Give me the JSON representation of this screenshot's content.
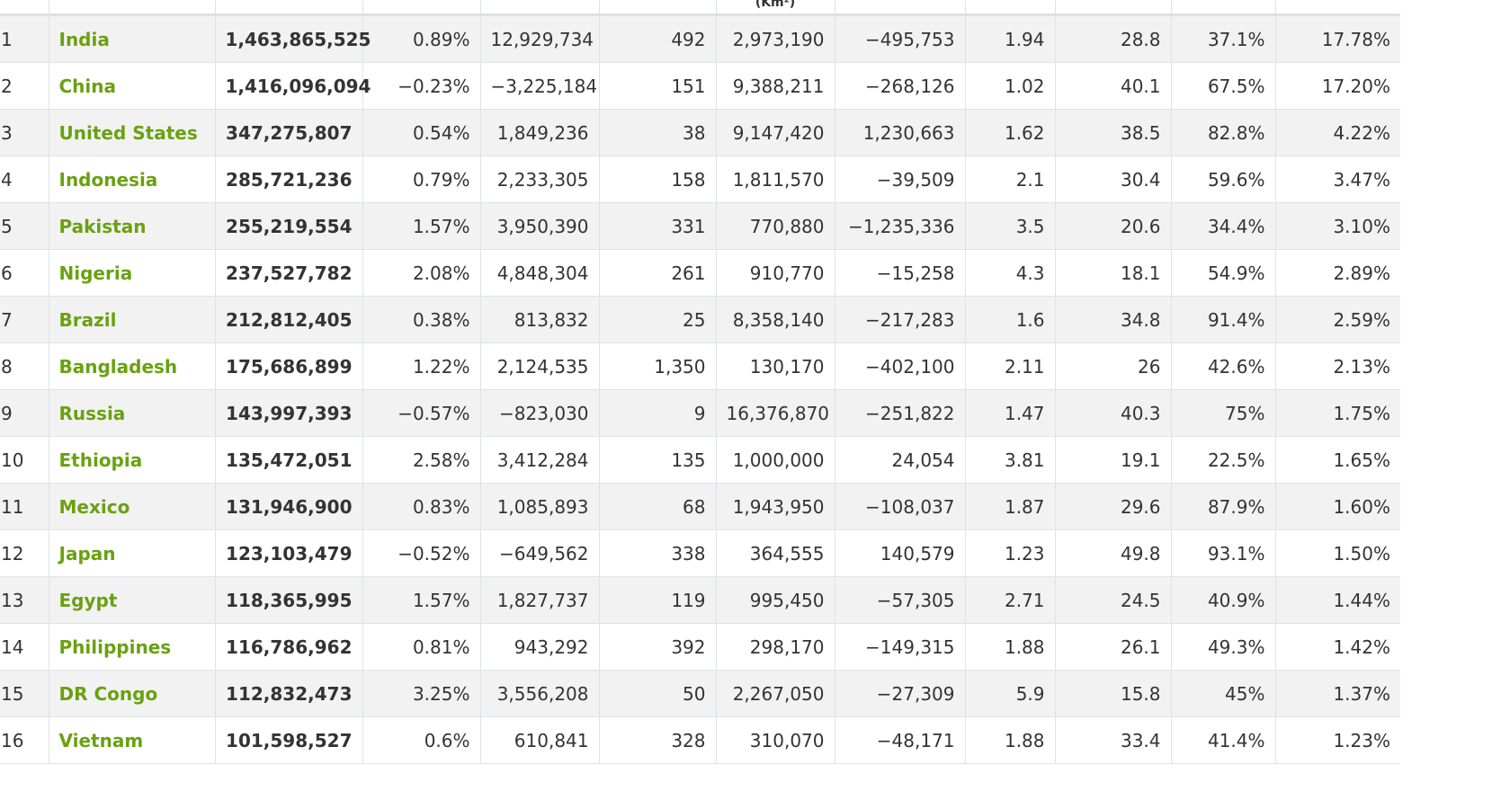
{
  "table": {
    "headers": [
      "",
      "",
      "",
      "",
      "",
      "",
      "(Km²)",
      "",
      "",
      "",
      "",
      ""
    ],
    "rows": [
      {
        "rank": "1",
        "country": "India",
        "population": "1,463,865,525",
        "yearly_change": "0.89%",
        "net_change": "12,929,734",
        "density": "492",
        "land_area": "2,973,190",
        "migrants": "−495,753",
        "fertility": "1.94",
        "median_age": "28.8",
        "urban_pop": "37.1%",
        "world_share": "17.78%"
      },
      {
        "rank": "2",
        "country": "China",
        "population": "1,416,096,094",
        "yearly_change": "−0.23%",
        "net_change": "−3,225,184",
        "density": "151",
        "land_area": "9,388,211",
        "migrants": "−268,126",
        "fertility": "1.02",
        "median_age": "40.1",
        "urban_pop": "67.5%",
        "world_share": "17.20%"
      },
      {
        "rank": "3",
        "country": "United States",
        "population": "347,275,807",
        "yearly_change": "0.54%",
        "net_change": "1,849,236",
        "density": "38",
        "land_area": "9,147,420",
        "migrants": "1,230,663",
        "fertility": "1.62",
        "median_age": "38.5",
        "urban_pop": "82.8%",
        "world_share": "4.22%"
      },
      {
        "rank": "4",
        "country": "Indonesia",
        "population": "285,721,236",
        "yearly_change": "0.79%",
        "net_change": "2,233,305",
        "density": "158",
        "land_area": "1,811,570",
        "migrants": "−39,509",
        "fertility": "2.1",
        "median_age": "30.4",
        "urban_pop": "59.6%",
        "world_share": "3.47%"
      },
      {
        "rank": "5",
        "country": "Pakistan",
        "population": "255,219,554",
        "yearly_change": "1.57%",
        "net_change": "3,950,390",
        "density": "331",
        "land_area": "770,880",
        "migrants": "−1,235,336",
        "fertility": "3.5",
        "median_age": "20.6",
        "urban_pop": "34.4%",
        "world_share": "3.10%"
      },
      {
        "rank": "6",
        "country": "Nigeria",
        "population": "237,527,782",
        "yearly_change": "2.08%",
        "net_change": "4,848,304",
        "density": "261",
        "land_area": "910,770",
        "migrants": "−15,258",
        "fertility": "4.3",
        "median_age": "18.1",
        "urban_pop": "54.9%",
        "world_share": "2.89%"
      },
      {
        "rank": "7",
        "country": "Brazil",
        "population": "212,812,405",
        "yearly_change": "0.38%",
        "net_change": "813,832",
        "density": "25",
        "land_area": "8,358,140",
        "migrants": "−217,283",
        "fertility": "1.6",
        "median_age": "34.8",
        "urban_pop": "91.4%",
        "world_share": "2.59%"
      },
      {
        "rank": "8",
        "country": "Bangladesh",
        "population": "175,686,899",
        "yearly_change": "1.22%",
        "net_change": "2,124,535",
        "density": "1,350",
        "land_area": "130,170",
        "migrants": "−402,100",
        "fertility": "2.11",
        "median_age": "26",
        "urban_pop": "42.6%",
        "world_share": "2.13%"
      },
      {
        "rank": "9",
        "country": "Russia",
        "population": "143,997,393",
        "yearly_change": "−0.57%",
        "net_change": "−823,030",
        "density": "9",
        "land_area": "16,376,870",
        "migrants": "−251,822",
        "fertility": "1.47",
        "median_age": "40.3",
        "urban_pop": "75%",
        "world_share": "1.75%"
      },
      {
        "rank": "10",
        "country": "Ethiopia",
        "population": "135,472,051",
        "yearly_change": "2.58%",
        "net_change": "3,412,284",
        "density": "135",
        "land_area": "1,000,000",
        "migrants": "24,054",
        "fertility": "3.81",
        "median_age": "19.1",
        "urban_pop": "22.5%",
        "world_share": "1.65%"
      },
      {
        "rank": "11",
        "country": "Mexico",
        "population": "131,946,900",
        "yearly_change": "0.83%",
        "net_change": "1,085,893",
        "density": "68",
        "land_area": "1,943,950",
        "migrants": "−108,037",
        "fertility": "1.87",
        "median_age": "29.6",
        "urban_pop": "87.9%",
        "world_share": "1.60%"
      },
      {
        "rank": "12",
        "country": "Japan",
        "population": "123,103,479",
        "yearly_change": "−0.52%",
        "net_change": "−649,562",
        "density": "338",
        "land_area": "364,555",
        "migrants": "140,579",
        "fertility": "1.23",
        "median_age": "49.8",
        "urban_pop": "93.1%",
        "world_share": "1.50%"
      },
      {
        "rank": "13",
        "country": "Egypt",
        "population": "118,365,995",
        "yearly_change": "1.57%",
        "net_change": "1,827,737",
        "density": "119",
        "land_area": "995,450",
        "migrants": "−57,305",
        "fertility": "2.71",
        "median_age": "24.5",
        "urban_pop": "40.9%",
        "world_share": "1.44%"
      },
      {
        "rank": "14",
        "country": "Philippines",
        "population": "116,786,962",
        "yearly_change": "0.81%",
        "net_change": "943,292",
        "density": "392",
        "land_area": "298,170",
        "migrants": "−149,315",
        "fertility": "1.88",
        "median_age": "26.1",
        "urban_pop": "49.3%",
        "world_share": "1.42%"
      },
      {
        "rank": "15",
        "country": "DR Congo",
        "population": "112,832,473",
        "yearly_change": "3.25%",
        "net_change": "3,556,208",
        "density": "50",
        "land_area": "2,267,050",
        "migrants": "−27,309",
        "fertility": "5.9",
        "median_age": "15.8",
        "urban_pop": "45%",
        "world_share": "1.37%"
      },
      {
        "rank": "16",
        "country": "Vietnam",
        "population": "101,598,527",
        "yearly_change": "0.6%",
        "net_change": "610,841",
        "density": "328",
        "land_area": "310,070",
        "migrants": "−48,171",
        "fertility": "1.88",
        "median_age": "33.4",
        "urban_pop": "41.4%",
        "world_share": "1.23%"
      }
    ]
  },
  "colors": {
    "country_link": "#6aa111",
    "row_stripe": "#f2f2f2",
    "border": "#dee2e6",
    "text": "#333333"
  }
}
